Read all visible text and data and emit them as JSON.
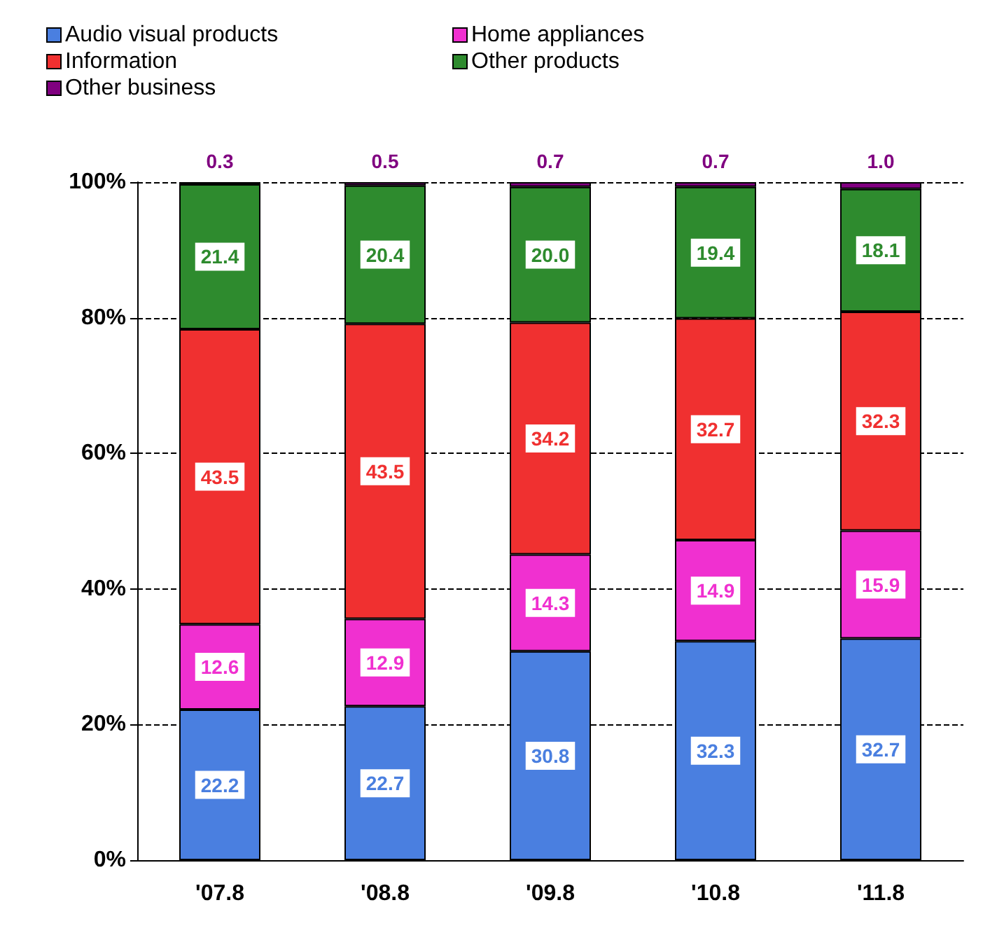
{
  "chart_data": {
    "type": "bar",
    "stacked": true,
    "categories": [
      "'07.8",
      "'08.8",
      "'09.8",
      "'10.8",
      "'11.8"
    ],
    "series": [
      {
        "name": "Audio visual products",
        "color": "#4a7fe0",
        "values": [
          22.2,
          22.7,
          30.8,
          32.3,
          32.7
        ],
        "value_labels": [
          "22.2",
          "22.7",
          "30.8",
          "32.3",
          "32.7"
        ]
      },
      {
        "name": "Home appliances",
        "color": "#f030d0",
        "values": [
          12.6,
          12.9,
          14.3,
          14.9,
          15.9
        ],
        "value_labels": [
          "12.6",
          "12.9",
          "14.3",
          "14.9",
          "15.9"
        ]
      },
      {
        "name": "Information",
        "color": "#f03030",
        "values": [
          43.5,
          43.5,
          34.2,
          32.7,
          32.3
        ],
        "value_labels": [
          "43.5",
          "43.5",
          "34.2",
          "32.7",
          "32.3"
        ]
      },
      {
        "name": "Other products",
        "color": "#2e8b2e",
        "values": [
          21.4,
          20.4,
          20,
          19.4,
          18.1
        ],
        "value_labels": [
          "21.4",
          "20.4",
          "20.0",
          "19.4",
          "18.1"
        ]
      },
      {
        "name": "Other business",
        "color": "#800080",
        "values": [
          0.3,
          0.5,
          0.7,
          0.7,
          1
        ],
        "value_labels": [
          "0.3",
          "0.5",
          "0.7",
          "0.7",
          "1.0"
        ]
      }
    ],
    "ylim": [
      0,
      100
    ],
    "yticks": [
      {
        "value": 0,
        "label": "0%"
      },
      {
        "value": 20,
        "label": "20%"
      },
      {
        "value": 40,
        "label": "40%"
      },
      {
        "value": 60,
        "label": "60%"
      },
      {
        "value": 80,
        "label": "80%"
      },
      {
        "value": 100,
        "label": "100%"
      }
    ],
    "grid": "y",
    "legend": "top left"
  }
}
